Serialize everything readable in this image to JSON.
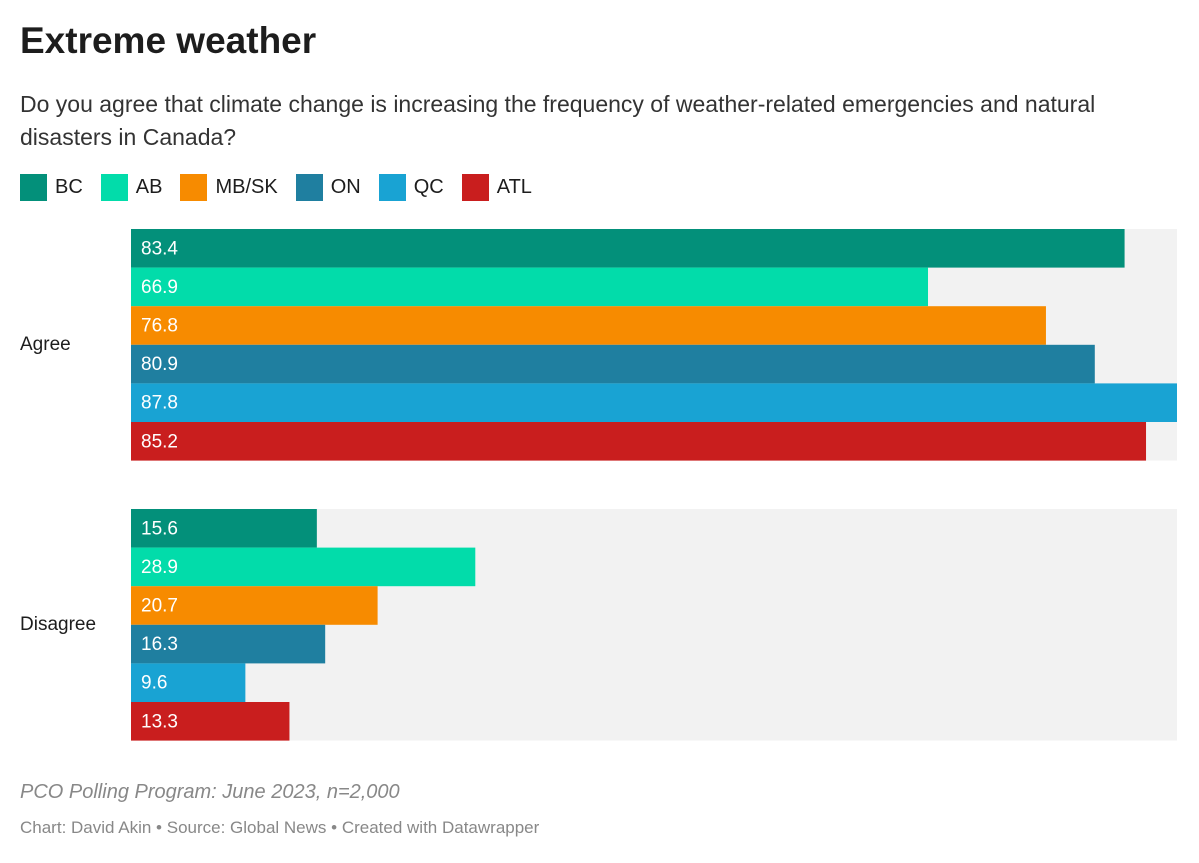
{
  "chart_data": {
    "type": "bar",
    "title": "Extreme weather",
    "subtitle": "Do you agree that climate change is increasing the frequency of weather-related emergencies and natural disasters in Canada?",
    "categories": [
      "Agree",
      "Disagree"
    ],
    "series": [
      {
        "name": "BC",
        "color": "#03907a",
        "values": [
          83.4,
          15.6
        ]
      },
      {
        "name": "AB",
        "color": "#02dcaa",
        "values": [
          66.9,
          28.9
        ]
      },
      {
        "name": "MB/SK",
        "color": "#f78b00",
        "values": [
          76.8,
          20.7
        ]
      },
      {
        "name": "ON",
        "color": "#1f7fa0",
        "values": [
          80.9,
          16.3
        ]
      },
      {
        "name": "QC",
        "color": "#19a3d3",
        "values": [
          87.8,
          9.6
        ]
      },
      {
        "name": "ATL",
        "color": "#c91e1e",
        "values": [
          85.2,
          13.3
        ]
      }
    ],
    "xlim": [
      0,
      87.8
    ],
    "note": "PCO Polling Program: June 2023, n=2,000",
    "credit": "Chart: David Akin • Source: Global News • Created with Datawrapper"
  }
}
